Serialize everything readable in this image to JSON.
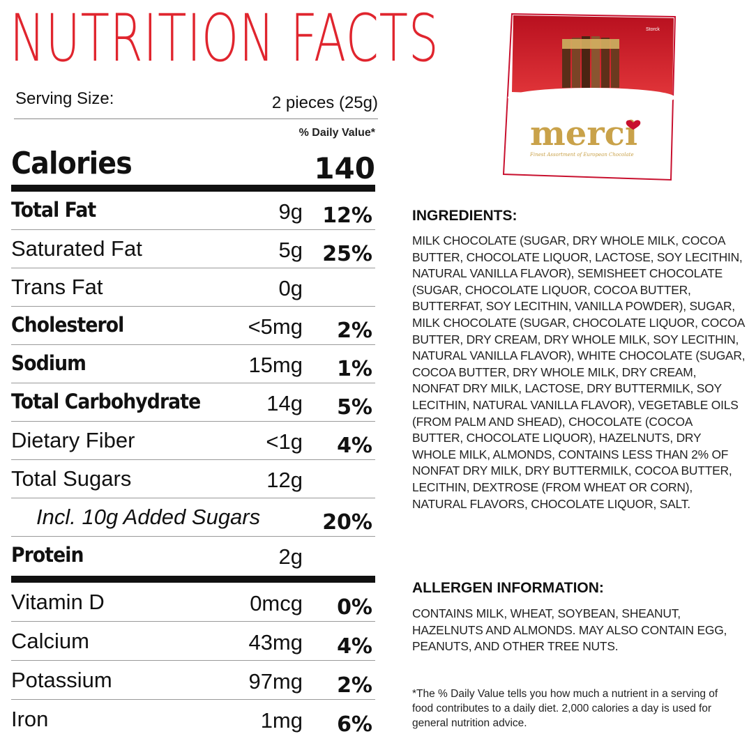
{
  "title": "NUTRITION FACTS",
  "serving": {
    "label": "Serving Size:",
    "value": "2 pieces (25g)"
  },
  "daily_value_header": "% Daily Value*",
  "calories": {
    "label": "Calories",
    "value": "140"
  },
  "nutrients": [
    {
      "name": "Total Fat",
      "amount": "9g",
      "dv": "12%"
    },
    {
      "name": "Saturated Fat",
      "amount": "5g",
      "dv": "25%"
    },
    {
      "name": "Trans Fat",
      "amount": "0g",
      "dv": ""
    },
    {
      "name": "Cholesterol",
      "amount": "<5mg",
      "dv": "2%"
    },
    {
      "name": "Sodium",
      "amount": "15mg",
      "dv": "1%"
    },
    {
      "name": "Total Carbohydrate",
      "amount": "14g",
      "dv": "5%"
    },
    {
      "name": "Dietary Fiber",
      "amount": "<1g",
      "dv": "4%"
    },
    {
      "name": "Total Sugars",
      "amount": "12g",
      "dv": ""
    },
    {
      "name": "Incl. 10g Added Sugars",
      "amount": "",
      "dv": "20%"
    },
    {
      "name": "Protein",
      "amount": "2g",
      "dv": ""
    }
  ],
  "vitamins": [
    {
      "name": "Vitamin D",
      "amount": "0mcg",
      "dv": "0%"
    },
    {
      "name": "Calcium",
      "amount": "43mg",
      "dv": "4%"
    },
    {
      "name": "Potassium",
      "amount": "97mg",
      "dv": "2%"
    },
    {
      "name": "Iron",
      "amount": "1mg",
      "dv": "6%"
    }
  ],
  "product": {
    "brand": "merci",
    "maker": "Storck",
    "tagline": "Finest Assortment of European Chocolate"
  },
  "ingredients": {
    "heading": "INGREDIENTS:",
    "text": "MILK CHOCOLATE (SUGAR, DRY WHOLE MILK, COCOA BUTTER, CHOCOLATE LIQUOR, LACTOSE, SOY LECITHIN, NATURAL VANILLA FLAVOR), SEMISHEET CHOCOLATE (SUGAR, CHOCOLATE LIQUOR, COCOA BUTTER, BUTTERFAT, SOY LECITHIN, VANILLA POWDER), SUGAR, MILK CHOCOLATE (SUGAR, CHOCOLATE LIQUOR, COCOA BUTTER, DRY CREAM, DRY WHOLE MILK, SOY LECITHIN, NATURAL VANILLA FLAVOR), WHITE CHOCOLATE (SUGAR, COCOA BUTTER, DRY WHOLE MILK, DRY CREAM, NONFAT DRY MILK, LACTOSE, DRY BUTTERMILK, SOY LECITHIN, NATURAL VANILLA FLAVOR), VEGETABLE OILS (FROM PALM AND SHEAD), CHOCOLATE (COCOA BUTTER, CHOCOLATE LIQUOR), HAZELNUTS, DRY WHOLE MILK, ALMONDS, CONTAINS LESS THAN 2% OF NONFAT DRY MILK, DRY BUTTERMILK, COCOA BUTTER, LECITHIN, DEXTROSE (FROM WHEAT OR CORN), NATURAL FLAVORS, CHOCOLATE LIQUOR, SALT."
  },
  "allergen": {
    "heading": "ALLERGEN INFORMATION:",
    "text": "CONTAINS MILK, WHEAT, SOYBEAN, SHEANUT, HAZELNUTS AND ALMONDS. MAY ALSO CONTAIN EGG, PEANUTS, AND OTHER TREE NUTS."
  },
  "footnote": "*The % Daily Value tells you how much a nutrient in a serving of food contributes to a daily diet. 2,000 calories a day is used for general nutrition advice.",
  "colors": {
    "title_red": "#e0252e",
    "box_red": "#c8102e",
    "gold": "#c9a24a"
  }
}
